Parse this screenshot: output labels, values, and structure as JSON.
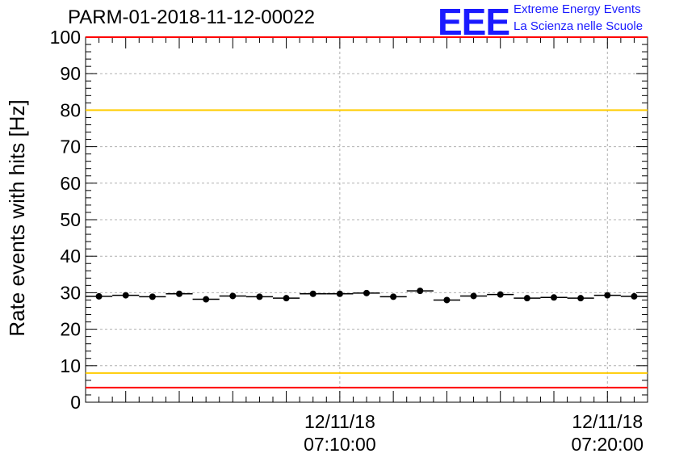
{
  "header": {
    "title": "PARM-01-2018-11-12-00022",
    "logo_text": "EEE",
    "logo_line1": "Extreme Energy Events",
    "logo_line2": "La Scienza nelle Scuole"
  },
  "colors": {
    "limit_outer": "#ff0000",
    "limit_inner": "#ffcc00",
    "logo": "#1a1aff",
    "marker": "#000000"
  },
  "chart_data": {
    "type": "scatter",
    "title": "PARM-01-2018-11-12-00022",
    "ylabel": "Rate events with hits [Hz]",
    "xlabel": "",
    "ylim": [
      0,
      100
    ],
    "yticks": [
      0,
      10,
      20,
      30,
      40,
      50,
      60,
      70,
      80,
      90,
      100
    ],
    "xlim": [
      "07:00:30",
      "07:21:30"
    ],
    "xticks": [
      {
        "x": "07:10:00",
        "label_line1": "12/11/18",
        "label_line2": "07:10:00"
      },
      {
        "x": "07:20:00",
        "label_line1": "12/11/18",
        "label_line2": "07:20:00"
      }
    ],
    "grid": true,
    "x_bin_width_seconds": 60,
    "x": [
      "07:01:00",
      "07:02:00",
      "07:03:00",
      "07:04:00",
      "07:05:00",
      "07:06:00",
      "07:07:00",
      "07:08:00",
      "07:09:00",
      "07:10:00",
      "07:11:00",
      "07:12:00",
      "07:13:00",
      "07:14:00",
      "07:15:00",
      "07:16:00",
      "07:17:00",
      "07:18:00",
      "07:19:00",
      "07:20:00",
      "07:21:00"
    ],
    "values": [
      29.0,
      29.3,
      28.9,
      29.7,
      28.2,
      29.1,
      28.9,
      28.5,
      29.7,
      29.7,
      29.9,
      28.9,
      30.5,
      28.0,
      29.1,
      29.5,
      28.5,
      28.7,
      28.5,
      29.3,
      29.0
    ],
    "reference_lines": [
      {
        "y": 100,
        "color": "#ff0000"
      },
      {
        "y": 80,
        "color": "#ffcc00"
      },
      {
        "y": 8,
        "color": "#ffcc00"
      },
      {
        "y": 4,
        "color": "#ff0000"
      }
    ]
  }
}
